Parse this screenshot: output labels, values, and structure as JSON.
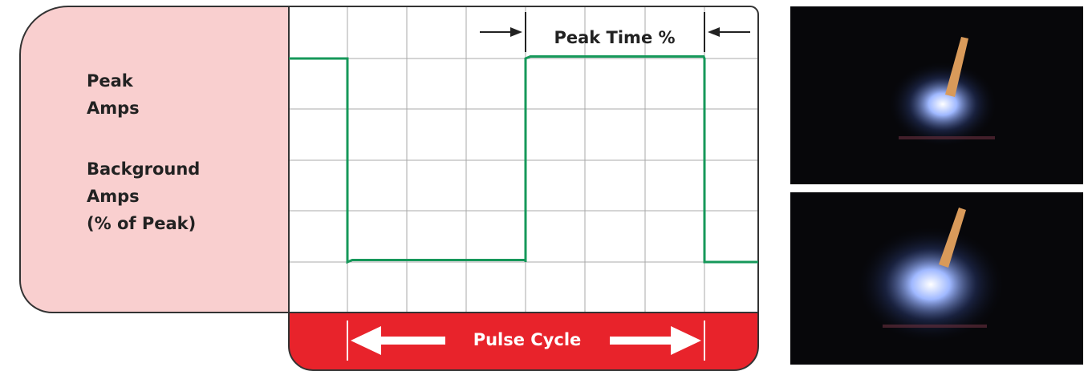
{
  "labels": {
    "peak": [
      "Peak",
      "Amps"
    ],
    "background": [
      "Background",
      "Amps",
      "(% of Peak)"
    ]
  },
  "peak_time": "Peak Time %",
  "pulse_cycle": "Pulse Cycle"
}
